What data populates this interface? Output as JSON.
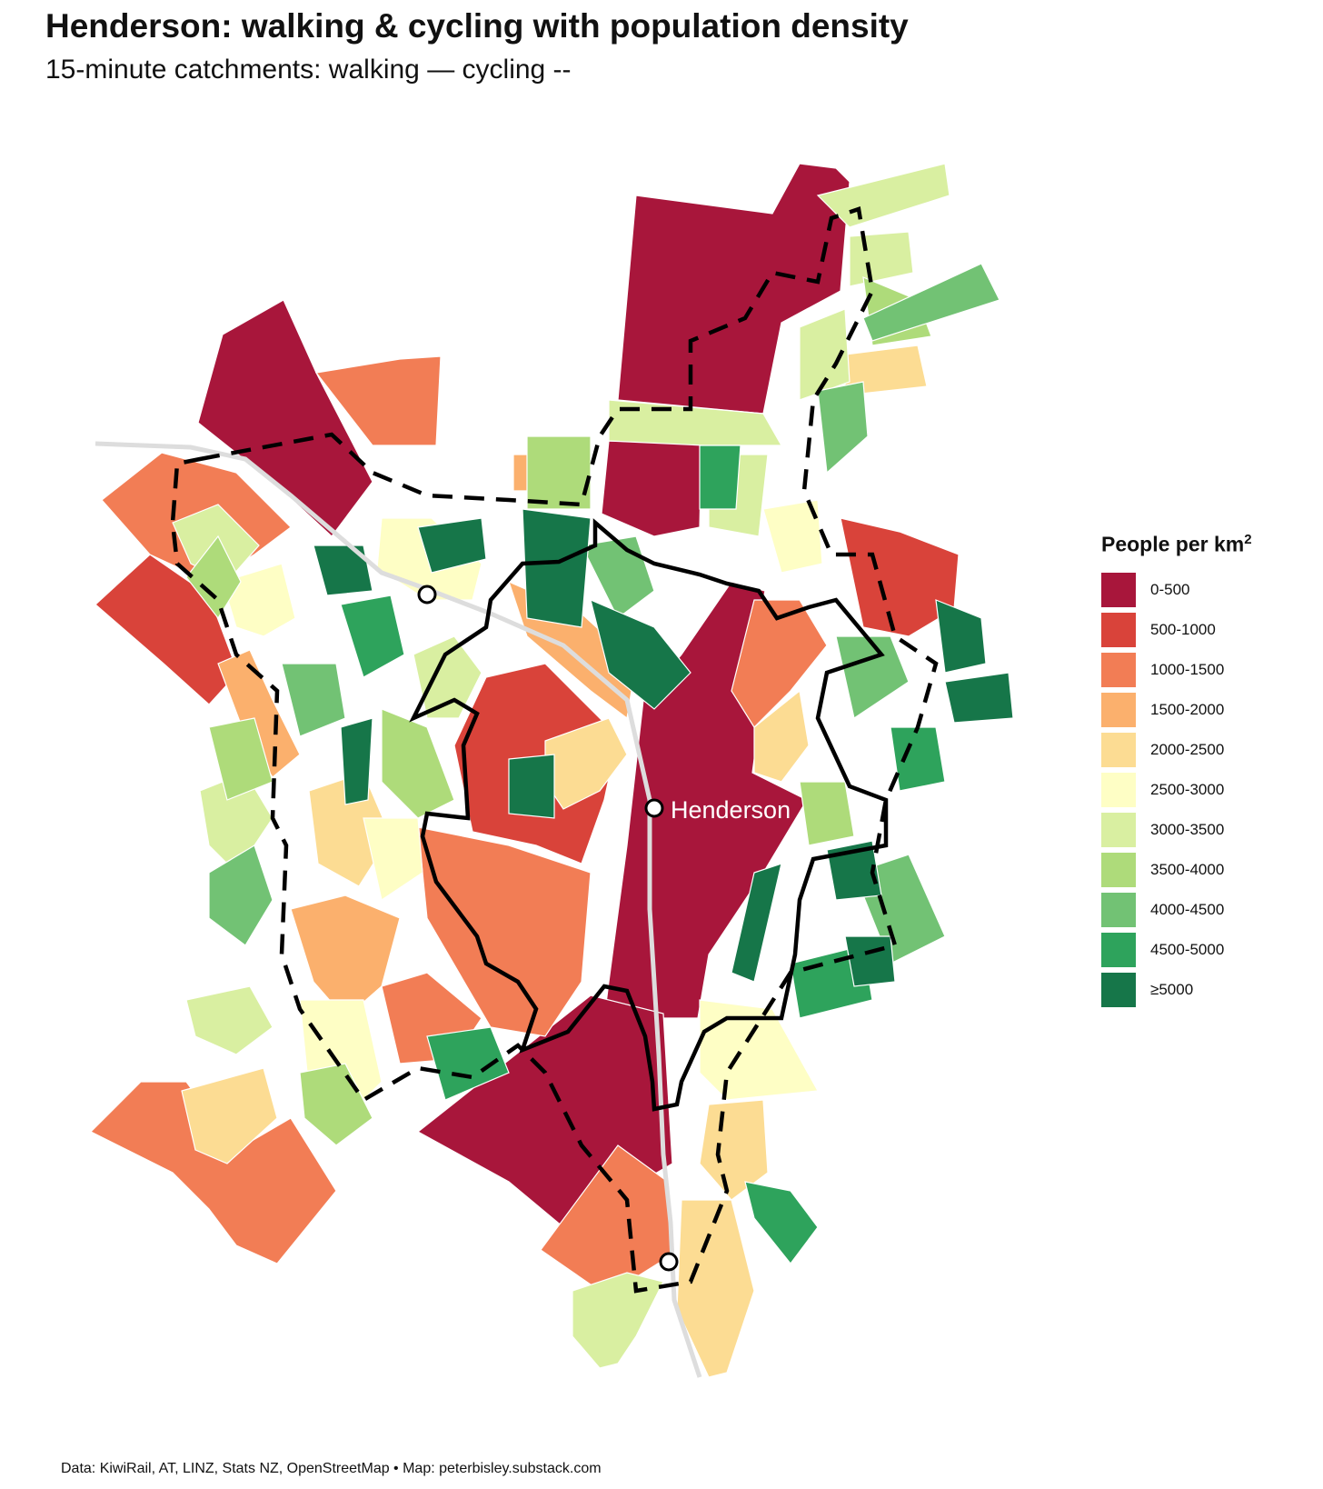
{
  "title": "Henderson: walking & cycling with population density",
  "subtitle": "15-minute catchments: walking — cycling --",
  "legend": {
    "title": "People per km",
    "title_sup": "2",
    "items": [
      {
        "label": "0-500",
        "color": "#a8163b"
      },
      {
        "label": "500-1000",
        "color": "#d9433a"
      },
      {
        "label": "1000-1500",
        "color": "#f27d55"
      },
      {
        "label": "1500-2000",
        "color": "#fbb06d"
      },
      {
        "label": "2000-2500",
        "color": "#fcdc93"
      },
      {
        "label": "2500-3000",
        "color": "#fefec5"
      },
      {
        "label": "3000-3500",
        "color": "#d9efa1"
      },
      {
        "label": "3500-4000",
        "color": "#aedb7a"
      },
      {
        "label": "4000-4500",
        "color": "#72c274"
      },
      {
        "label": "4500-5000",
        "color": "#2ea35c"
      },
      {
        "label": "≥5000",
        "color": "#167649"
      }
    ]
  },
  "stations": [
    {
      "label": "",
      "name": "north-west-station"
    },
    {
      "label": "Henderson",
      "name": "henderson-station"
    },
    {
      "label": "",
      "name": "south-station"
    }
  ],
  "caption": "Data: KiwiRail, AT, LINZ, Stats NZ, OpenStreetMap • Map: peterbisley.substack.com"
}
